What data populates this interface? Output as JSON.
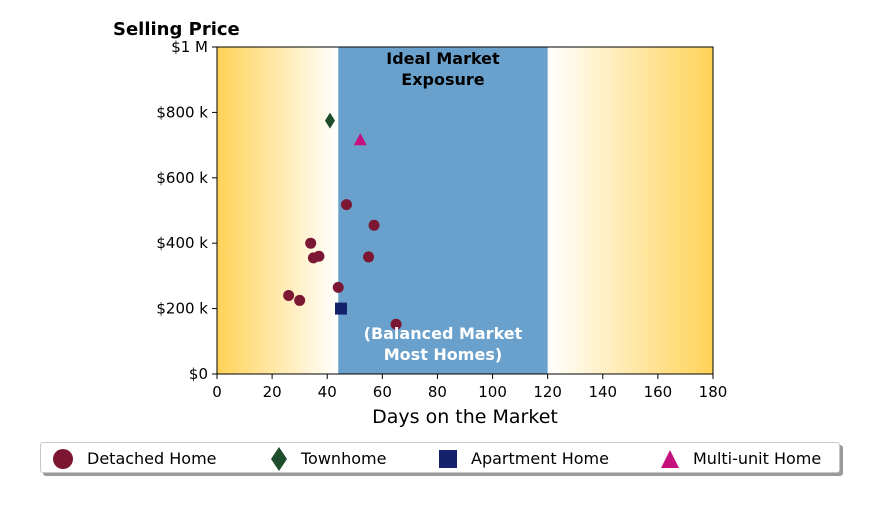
{
  "chart_data": {
    "type": "scatter",
    "title": "Selling Price",
    "xlabel": "Days on the Market",
    "ylabel": "",
    "xlim": [
      0,
      180
    ],
    "ylim": [
      0,
      1000000
    ],
    "x_ticks": [
      0,
      20,
      40,
      60,
      80,
      100,
      120,
      140,
      160,
      180
    ],
    "x_tick_labels": [
      "0",
      "20",
      "40",
      "60",
      "80",
      "100",
      "120",
      "140",
      "160",
      "180"
    ],
    "y_ticks": [
      0,
      200000,
      400000,
      600000,
      800000,
      1000000
    ],
    "y_tick_labels": [
      "$0",
      "$200 k",
      "$400 k",
      "$600 k",
      "$800 k",
      "$1 M"
    ],
    "grid": false,
    "legend_placement": "bottom",
    "background_color": "#FFD257",
    "ideal_band": {
      "x_range": [
        44,
        120
      ],
      "color": "#6AA1CC",
      "label_top": [
        "Ideal Market",
        "Exposure"
      ],
      "label_bottom": [
        "(Balanced Market",
        "Most Homes)"
      ]
    },
    "series": [
      {
        "name": "Detached Home",
        "marker": "circle",
        "color": "#7B1733",
        "points": [
          {
            "x": 26,
            "y": 240000
          },
          {
            "x": 30,
            "y": 225000
          },
          {
            "x": 34,
            "y": 400000
          },
          {
            "x": 35,
            "y": 355000
          },
          {
            "x": 37,
            "y": 360000
          },
          {
            "x": 44,
            "y": 265000
          },
          {
            "x": 47,
            "y": 518000
          },
          {
            "x": 55,
            "y": 358000
          },
          {
            "x": 57,
            "y": 455000
          },
          {
            "x": 65,
            "y": 152000
          }
        ]
      },
      {
        "name": "Townhome",
        "marker": "diamond",
        "color": "#1E4D2B",
        "points": [
          {
            "x": 41,
            "y": 775000
          }
        ]
      },
      {
        "name": "Apartment Home",
        "marker": "square",
        "color": "#14226E",
        "points": [
          {
            "x": 45,
            "y": 200000
          }
        ]
      },
      {
        "name": "Multi-unit Home",
        "marker": "triangle",
        "color": "#C4117E",
        "points": [
          {
            "x": 52,
            "y": 715000
          }
        ]
      }
    ]
  }
}
